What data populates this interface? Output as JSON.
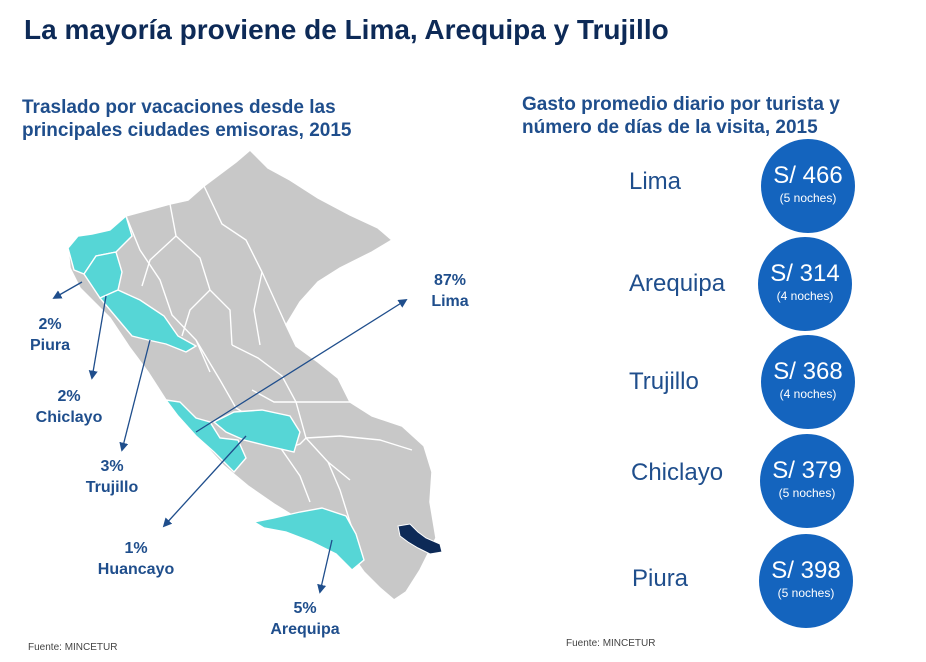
{
  "title": "La mayoría proviene de Lima, Arequipa y Trujillo",
  "left_panel": {
    "subtitle": "Traslado por vacaciones desde las principales ciudades emisoras, 2015",
    "labels": [
      {
        "pct": "87%",
        "city": "Lima"
      },
      {
        "pct": "2%",
        "city": "Piura"
      },
      {
        "pct": "2%",
        "city": "Chiclayo"
      },
      {
        "pct": "3%",
        "city": "Trujillo"
      },
      {
        "pct": "1%",
        "city": "Huancayo"
      },
      {
        "pct": "5%",
        "city": "Arequipa"
      }
    ],
    "source": "Fuente: MINCETUR"
  },
  "right_panel": {
    "subtitle": "Gasto promedio diario por turista y número de días de la visita, 2015",
    "rows": [
      {
        "city": "Lima",
        "amount": "S/ 466",
        "nights": "(5 noches)"
      },
      {
        "city": "Arequipa",
        "amount": "S/ 314",
        "nights": "(4 noches)"
      },
      {
        "city": "Trujillo",
        "amount": "S/ 368",
        "nights": "(4 noches)"
      },
      {
        "city": "Chiclayo",
        "amount": "S/ 379",
        "nights": "(5 noches)"
      },
      {
        "city": "Piura",
        "amount": "S/ 398",
        "nights": "(5 noches)"
      }
    ],
    "source": "Fuente: MINCETUR"
  },
  "colors": {
    "region_gray": "#c8c8c8",
    "highlight": "#56d6d6",
    "puno_dark": "#0d2a57",
    "arrow": "#1f4e8c",
    "bubble": "#1464be"
  }
}
